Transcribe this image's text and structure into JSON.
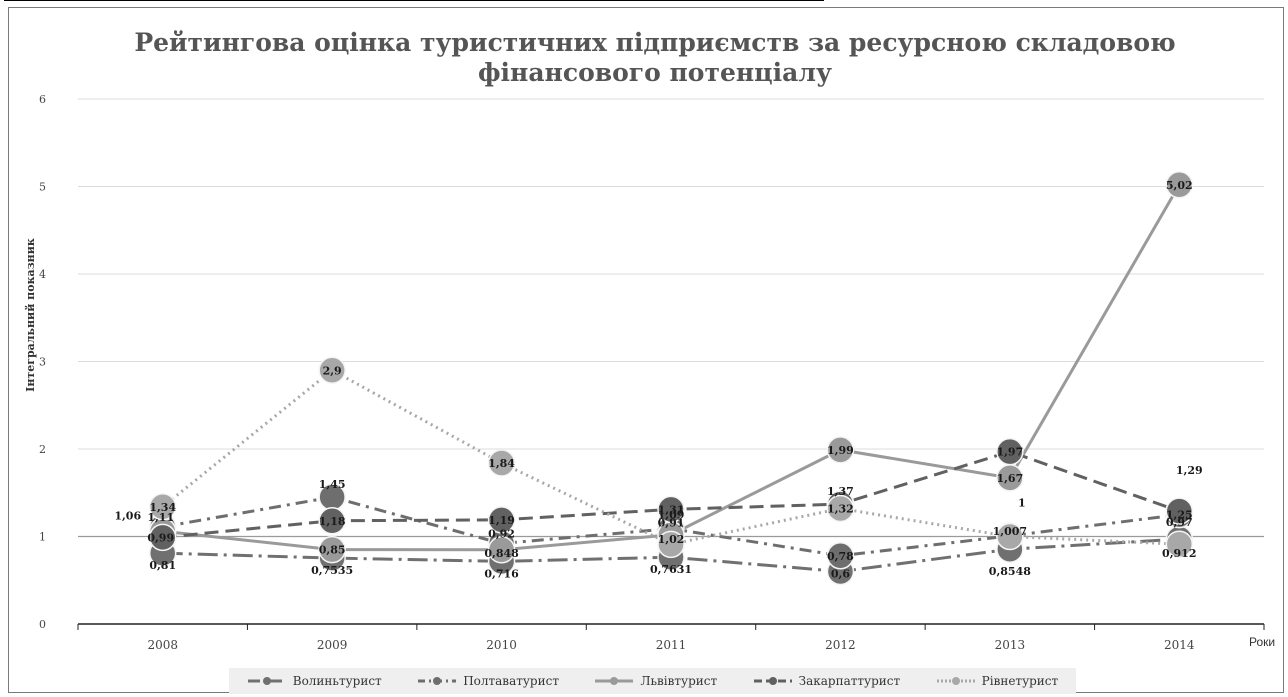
{
  "chart_data": {
    "type": "line",
    "title_lines": [
      "Рейтингова оцінка туристичних підприємств за ресурсною складовою",
      "фінансового потенціалу"
    ],
    "xlabel": "Роки",
    "ylabel": "Інтегральний показник",
    "categories": [
      "2008",
      "2009",
      "2010",
      "2011",
      "2012",
      "2013",
      "2014"
    ],
    "ylim": [
      0,
      6
    ],
    "yticks": [
      "0",
      "1",
      "2",
      "3",
      "4",
      "5",
      "6"
    ],
    "grid": true,
    "legend_position": "bottom",
    "series": [
      {
        "name": "Волиньтурист",
        "values": [
          0.81,
          0.7535,
          0.716,
          0.7631,
          0.6,
          0.8548,
          0.97
        ],
        "labels": [
          "0,81",
          "0,7535",
          "0,716",
          "0,7631",
          "0,6",
          "0,8548",
          "0,97"
        ],
        "color": "#707070",
        "dash": "20 6 3 6"
      },
      {
        "name": "Полтаватурист",
        "values": [
          1.11,
          1.45,
          0.92,
          1.09,
          0.78,
          1.007,
          1.25
        ],
        "labels": [
          "1,11",
          "1,45",
          "0,92",
          "1,09",
          "0,78",
          "1,007",
          "1,25"
        ],
        "color": "#6e6e6e",
        "dash": "12 6 3 6"
      },
      {
        "name": "Львівтурист",
        "values": [
          1.06,
          0.85,
          0.848,
          1.02,
          1.99,
          1.67,
          5.02
        ],
        "labels": [
          "1,06",
          "0,85",
          "0,848",
          "1,02",
          "1,99",
          "1,67",
          "5,02"
        ],
        "color": "#9a9a9a",
        "dash": ""
      },
      {
        "name": "Закарпаттурист",
        "values": [
          0.99,
          1.18,
          1.19,
          1.31,
          1.37,
          1.97,
          1.29
        ],
        "labels": [
          "0,99",
          "1,18",
          "1,19",
          "1,31",
          "1,37",
          "1,97",
          "1,29"
        ],
        "color": "#616161",
        "dash": "14 7"
      },
      {
        "name": "Рівнетурист",
        "values": [
          1.34,
          2.9,
          1.84,
          0.91,
          1.32,
          1,
          0.912
        ],
        "labels": [
          "1,34",
          "2,9",
          "1,84",
          "0,91",
          "1,32",
          "1",
          "0,912"
        ],
        "color": "#a8a8a8",
        "dash": "2 4"
      }
    ]
  }
}
